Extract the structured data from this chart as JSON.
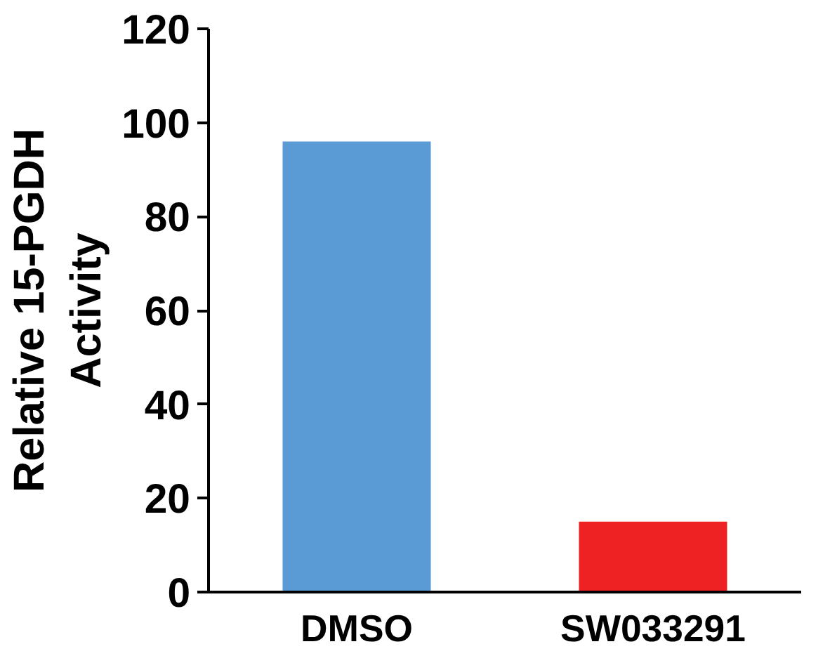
{
  "chart_data": {
    "type": "bar",
    "ylabel": "Relative 15-PGDH Activity",
    "categories": [
      "DMSO",
      "SW033291"
    ],
    "values": [
      96,
      15
    ],
    "colors": [
      "#5b9bd5",
      "#ee2222"
    ],
    "ylim": [
      0,
      120
    ],
    "yticks": [
      0,
      20,
      40,
      60,
      80,
      100,
      120
    ],
    "grid": false
  }
}
